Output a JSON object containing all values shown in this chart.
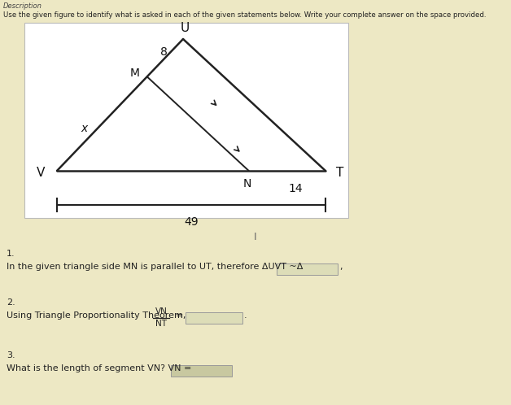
{
  "bg_color": "#ede8c4",
  "diagram_bg": "#f5f5f5",
  "description": "Description",
  "instruction": "Use the given figure to identify what is asked in each of the given statements below. Write your complete answer on the space provided.",
  "label_V": "V",
  "label_T": "T",
  "label_U": "U",
  "label_M": "M",
  "label_N": "N",
  "label_8": "8",
  "label_X": "x",
  "label_14": "14",
  "label_49": "49",
  "q1_num": "1.",
  "q1_text": "In the given triangle side MN is parallel to UT, therefore ΔUVT ~Δ",
  "q2_num": "2.",
  "q2_text_pre": "Using Triangle Proportionality Theorem,  ",
  "q2_fraction_top": "VN",
  "q2_fraction_bot": "NT",
  "q3_num": "3.",
  "q3_text": "What is the length of segment VN? VN =",
  "box_color_light": "#ddddb8",
  "box_color_med": "#c8c8a0",
  "line_color": "#222222",
  "font_size": 7.5
}
